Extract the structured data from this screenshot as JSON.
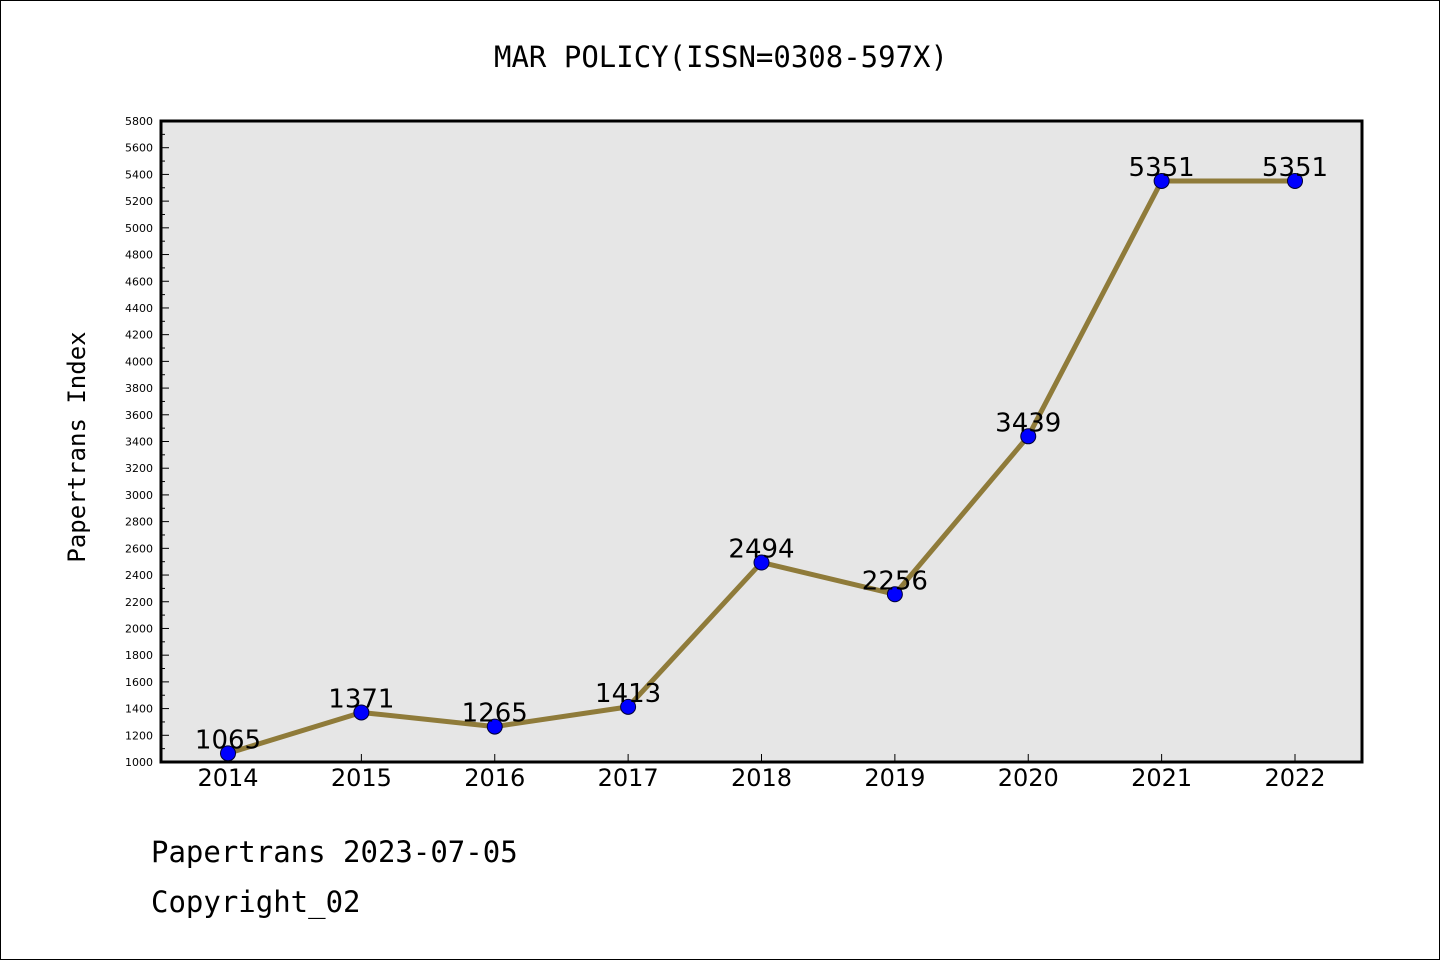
{
  "chart_data": {
    "type": "line",
    "title": "MAR POLICY(ISSN=0308-597X)",
    "xlabel": "",
    "ylabel": "Papertrans Index",
    "categories": [
      "2014",
      "2015",
      "2016",
      "2017",
      "2018",
      "2019",
      "2020",
      "2021",
      "2022"
    ],
    "series": [
      {
        "values": [
          1065,
          1371,
          1265,
          1413,
          2494,
          2256,
          3439,
          5351,
          5351
        ]
      }
    ],
    "data_labels": [
      "1065",
      "1371",
      "1265",
      "1413",
      "2494",
      "2256",
      "3439",
      "5351",
      "5351"
    ],
    "ylim": [
      1000,
      5800
    ],
    "yticks": [
      1000,
      1200,
      1400,
      1600,
      1800,
      2000,
      2200,
      2400,
      2600,
      2800,
      3000,
      3200,
      3400,
      3600,
      3800,
      4000,
      4200,
      4400,
      4600,
      4800,
      5000,
      5200,
      5400,
      5600,
      5800
    ],
    "grid": false,
    "line_color": "#8f7b3a",
    "marker_color": "#0000ff",
    "plot_background": "#e6e6e6"
  },
  "footer": {
    "date_line": "Papertrans 2023-07-05",
    "copyright_line": "Copyright_02"
  }
}
